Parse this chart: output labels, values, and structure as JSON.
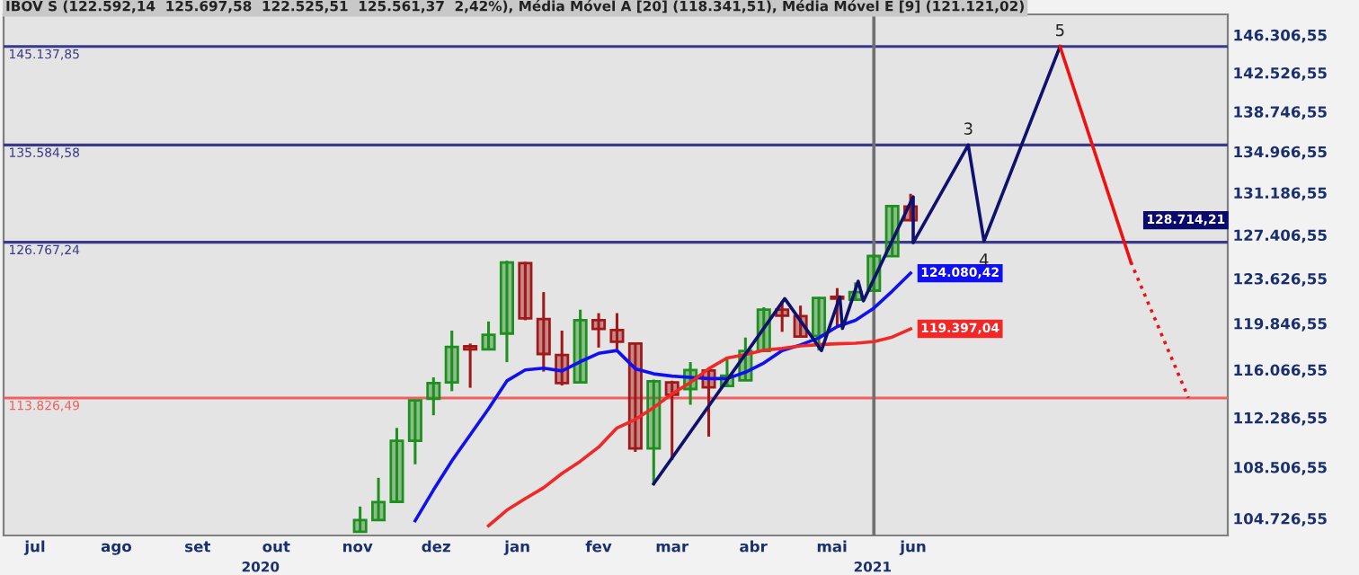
{
  "chart_data": {
    "type": "candlestick",
    "title": "IBOV S (122.592,14  125.697,58  122.525,51  125.561,37  2,42%), Média Móvel A [20] (118.341,51), Média Móvel E [9] (121.121,02)",
    "log": true,
    "xlim": [
      "2020-06-19",
      "2021-09-29"
    ],
    "xticks": [
      {
        "value": "2020-07-01",
        "label": "jul"
      },
      {
        "value": "2020-08-01",
        "label": "ago"
      },
      {
        "value": "2020-09-01",
        "label": "set"
      },
      {
        "value": "2020-10-01",
        "label": "out"
      },
      {
        "value": "2020-11-01",
        "label": "nov"
      },
      {
        "value": "2020-12-01",
        "label": "dez"
      },
      {
        "value": "2021-01-01",
        "label": "jan"
      },
      {
        "value": "2021-02-01",
        "label": "fev"
      },
      {
        "value": "2021-03-01",
        "label": "mar"
      },
      {
        "value": "2021-04-01",
        "label": "abr"
      },
      {
        "value": "2021-05-01",
        "label": "mai"
      },
      {
        "value": "2021-06-01",
        "label": "jun"
      }
    ],
    "ylim": [
      103500,
      148400
    ],
    "yticks": [
      {
        "value": 104726.55,
        "label": "104.726,55"
      },
      {
        "value": 108506.55,
        "label": "108.506,55"
      },
      {
        "value": 112286.55,
        "label": "112.286,55"
      },
      {
        "value": 116066.55,
        "label": "116.066,55"
      },
      {
        "value": 119846.55,
        "label": "119.846,55"
      },
      {
        "value": 123626.55,
        "label": "123.626,55"
      },
      {
        "value": 127406.55,
        "label": "127.406,55"
      },
      {
        "value": 131186.55,
        "label": "131.186,55"
      },
      {
        "value": 134966.55,
        "label": "134.966,55"
      },
      {
        "value": 138746.55,
        "label": "138.746,55"
      },
      {
        "value": 142526.55,
        "label": "142.526,55"
      },
      {
        "value": 146306.55,
        "label": "146.306,55"
      }
    ],
    "ref_lines": [
      {
        "axis": "y",
        "value": 145137.85,
        "label": "145.137,85",
        "color": "#3a3a8c"
      },
      {
        "axis": "y",
        "value": 135584.58,
        "label": "135.584,58",
        "color": "#3a3a8c"
      },
      {
        "axis": "y",
        "value": 126767.24,
        "label": "126.767,24",
        "color": "#3a3a8c"
      },
      {
        "axis": "y",
        "value": 113826.49,
        "label": "113.826,49",
        "color": "#f06060"
      },
      {
        "axis": "x",
        "value": "2021-05-17",
        "color": "#707070"
      }
    ],
    "annotations": [
      {
        "text": "3",
        "x": "2021-06-22",
        "y": 135580
      },
      {
        "text": "4",
        "x": "2021-06-28",
        "y": 126870
      },
      {
        "text": "5",
        "x": "2021-07-27",
        "y": 145140
      },
      "2020",
      "2021"
    ],
    "series": [
      {
        "color": "#0a0a6e",
        "x": [
          "2020-11-02",
          "2020-11-09",
          "2020-11-16",
          "2020-11-23",
          "2020-11-30",
          "2020-12-07",
          "2020-12-14",
          "2020-12-21",
          "2020-12-28",
          "2021-01-04",
          "2021-01-11",
          "2021-01-18",
          "2021-01-25",
          "2021-02-01",
          "2021-02-08",
          "2021-02-15",
          "2021-02-22",
          "2021-03-01",
          "2021-03-08",
          "2021-03-15",
          "2021-03-22",
          "2021-03-29",
          "2021-04-05",
          "2021-04-12",
          "2021-04-19",
          "2021-04-26",
          "2021-05-03",
          "2021-05-10",
          "2021-05-17",
          "2021-05-24",
          "2021-05-31"
        ],
        "ohlc": [
          [
            103760,
            105590,
            103760,
            104600
          ],
          [
            104600,
            107710,
            104600,
            105910
          ],
          [
            105940,
            111490,
            105940,
            110510
          ],
          [
            110510,
            113630,
            108720,
            113630
          ],
          [
            113760,
            115460,
            112470,
            115000
          ],
          [
            115050,
            119250,
            114360,
            117910
          ],
          [
            117960,
            118190,
            114630,
            117720
          ],
          [
            117720,
            120010,
            117720,
            118910
          ],
          [
            119010,
            125160,
            116680,
            125010
          ],
          [
            124950,
            125050,
            120110,
            120260
          ],
          [
            120200,
            122470,
            115920,
            117340
          ],
          [
            117250,
            119250,
            114810,
            115000
          ],
          [
            115050,
            120990,
            115050,
            120110
          ],
          [
            120110,
            120700,
            117860,
            119390
          ],
          [
            119290,
            120700,
            117720,
            118340
          ],
          [
            118190,
            118290,
            109660,
            109920
          ],
          [
            109920,
            115280,
            107170,
            115140
          ],
          [
            115050,
            115190,
            109040,
            114080
          ],
          [
            114530,
            116680,
            113290,
            116050
          ],
          [
            116010,
            116150,
            110820,
            114670
          ],
          [
            114770,
            117110,
            114770,
            115600
          ],
          [
            115220,
            118680,
            115220,
            117580
          ],
          [
            117580,
            121190,
            117580,
            120990
          ],
          [
            120990,
            121730,
            119150,
            120490
          ],
          [
            120450,
            121330,
            118760,
            118760
          ],
          [
            118820,
            122070,
            117620,
            121970
          ],
          [
            122070,
            122810,
            119620,
            121920
          ],
          [
            121820,
            123290,
            121820,
            122470
          ],
          [
            122592.14,
            125697.58,
            122525.51,
            125561.37
          ],
          [
            125550,
            130090,
            125550,
            129980
          ],
          [
            129930,
            131080,
            128620,
            128714.21
          ]
        ],
        "colors": [
          "#1f8f1f",
          "#1f8f1f",
          "#1f8f1f",
          "#1f8f1f",
          "#1f8f1f",
          "#1f8f1f",
          "#a01818",
          "#1f8f1f",
          "#1f8f1f",
          "#a01818",
          "#a01818",
          "#a01818",
          "#1f8f1f",
          "#a01818",
          "#a01818",
          "#a01818",
          "#1f8f1f",
          "#a01818",
          "#1f8f1f",
          "#a01818",
          "#1f8f1f",
          "#1f8f1f",
          "#1f8f1f",
          "#a01818",
          "#a01818",
          "#1f8f1f",
          "#a01818",
          "#1f8f1f",
          "#1f8f1f",
          "#1f8f1f",
          "#a01818"
        ],
        "value_labels": [
          null,
          null,
          null,
          null,
          null,
          null,
          null,
          null,
          null,
          null,
          null,
          null,
          null,
          null,
          null,
          null,
          null,
          null,
          null,
          null,
          null,
          null,
          null,
          null,
          null,
          null,
          null,
          null,
          null,
          null,
          "128.714,21"
        ]
      },
      {
        "type": "line",
        "color": "#1010f0",
        "x": [
          "2020-11-23",
          "2020-11-30",
          "2020-12-07",
          "2020-12-14",
          "2020-12-21",
          "2020-12-28",
          "2021-01-04",
          "2021-01-11",
          "2021-01-18",
          "2021-01-25",
          "2021-02-01",
          "2021-02-08",
          "2021-02-15",
          "2021-02-22",
          "2021-03-01",
          "2021-03-08",
          "2021-03-15",
          "2021-03-22",
          "2021-03-29",
          "2021-04-05",
          "2021-04-12",
          "2021-04-19",
          "2021-04-26",
          "2021-05-03",
          "2021-05-10",
          "2021-05-17",
          "2021-05-24",
          "2021-05-31"
        ],
        "values": [
          104560,
          106810,
          108980,
          110960,
          112980,
          115180,
          116050,
          116200,
          115970,
          116720,
          117390,
          117620,
          116150,
          115740,
          115560,
          115460,
          115360,
          115360,
          115870,
          116610,
          117620,
          118080,
          118650,
          119580,
          120100,
          121121.02,
          122550,
          124080.42
        ],
        "value_labels": [
          null,
          null,
          null,
          null,
          null,
          null,
          null,
          null,
          null,
          null,
          null,
          null,
          null,
          null,
          null,
          null,
          null,
          null,
          null,
          null,
          null,
          null,
          null,
          null,
          null,
          null,
          null,
          "124.080,42"
        ]
      },
      {
        "type": "line",
        "color": "#f02828",
        "x": [
          "2020-12-21",
          "2020-12-28",
          "2021-01-04",
          "2021-01-11",
          "2021-01-18",
          "2021-01-25",
          "2021-02-01",
          "2021-02-08",
          "2021-02-15",
          "2021-02-22",
          "2021-03-01",
          "2021-03-08",
          "2021-03-15",
          "2021-03-22",
          "2021-03-29",
          "2021-04-05",
          "2021-04-12",
          "2021-04-19",
          "2021-04-26",
          "2021-05-03",
          "2021-05-10",
          "2021-05-17",
          "2021-05-24",
          "2021-05-31"
        ],
        "values": [
          104200,
          105330,
          106170,
          106970,
          108030,
          108950,
          110020,
          111490,
          112150,
          113070,
          114150,
          115050,
          116150,
          117010,
          117290,
          117650,
          117790,
          118000,
          118100,
          118170,
          118220,
          118341.51,
          118720,
          119397.04
        ],
        "value_labels": [
          null,
          null,
          null,
          null,
          null,
          null,
          null,
          null,
          null,
          null,
          null,
          null,
          null,
          null,
          null,
          null,
          null,
          null,
          null,
          null,
          null,
          null,
          null,
          "119.397,04"
        ]
      },
      {
        "type": "line",
        "color": "#10106e",
        "x": [
          "2021-02-22",
          "2021-04-13",
          "2021-04-27",
          "2021-05-04",
          "2021-05-05",
          "2021-05-11",
          "2021-05-13",
          "2021-06-01",
          "2021-06-01",
          "2021-06-22",
          "2021-06-28",
          "2021-07-27"
        ],
        "values": [
          107260,
          121920,
          117620,
          122070,
          119430,
          123390,
          121730,
          130810,
          126720,
          135580,
          126870,
          145140
        ]
      },
      {
        "type": "line",
        "color": "#f01010",
        "x": [
          "2021-07-27",
          "2021-08-23"
        ],
        "values": [
          145140,
          125050
        ]
      },
      {
        "type": "line",
        "color": "#f01010",
        "line_style": "dotted",
        "x": [
          "2021-08-23",
          "2021-09-14"
        ],
        "values": [
          125050,
          113830
        ]
      }
    ]
  }
}
